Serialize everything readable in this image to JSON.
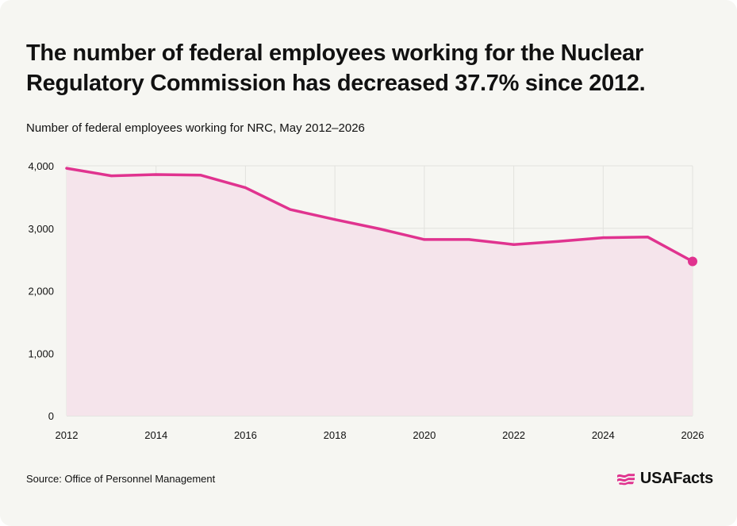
{
  "header": {
    "title": "The number of federal employees working for the Nuclear Regulatory Commission has decreased 37.7% since 2012.",
    "subtitle": "Number of federal employees working for NRC, May 2012–2026"
  },
  "footer": {
    "source": "Source: Office of Personnel Management",
    "brand": "USAFacts"
  },
  "colors": {
    "line": "#e0338f",
    "fill": "#f5e4eb",
    "grid": "#e2e2de",
    "text": "#111111",
    "background": "#f6f6f2"
  },
  "icons": {
    "brand_logo": "usa-flag-icon"
  },
  "chart_data": {
    "type": "area",
    "x": [
      2012,
      2013,
      2014,
      2015,
      2016,
      2017,
      2018,
      2019,
      2020,
      2021,
      2022,
      2023,
      2024,
      2025,
      2026
    ],
    "series": [
      {
        "values": [
          3960,
          3840,
          3860,
          3850,
          3650,
          3300,
          3140,
          2990,
          2820,
          2820,
          2740,
          2790,
          2850,
          2860,
          2470
        ]
      }
    ],
    "xticks": [
      "2012",
      "2014",
      "2016",
      "2018",
      "2020",
      "2022",
      "2024",
      "2026"
    ],
    "yticks": [
      "0",
      "1,000",
      "2,000",
      "3,000",
      "4,000"
    ],
    "xlim": [
      2012,
      2026
    ],
    "ylim": [
      0,
      4000
    ],
    "grid": true,
    "endpoint_marker": true
  }
}
